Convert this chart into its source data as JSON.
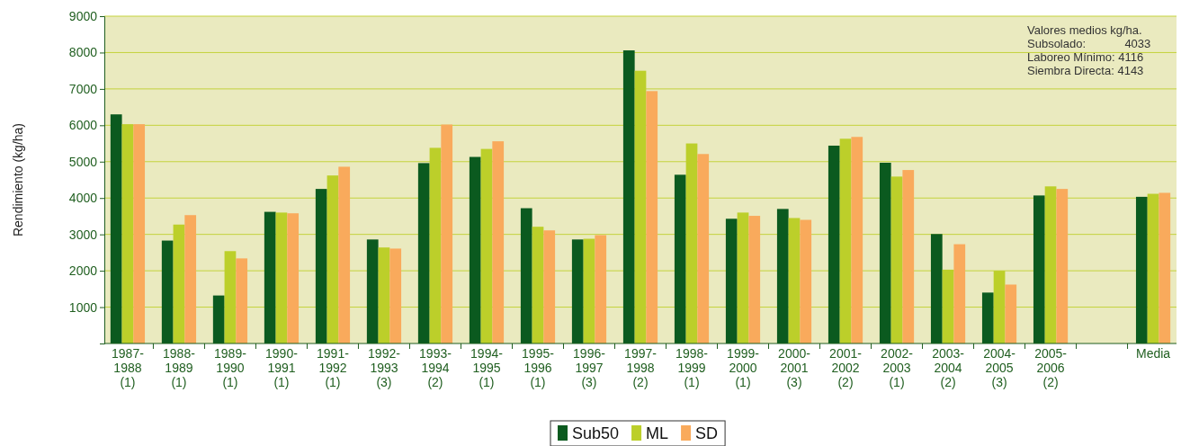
{
  "chart_data": {
    "type": "bar",
    "ylabel": "Rendimiento (kg/ha)",
    "categories": [
      "1987-1988\n(1)",
      "1988-1989\n(1)",
      "1989-1990\n(1)",
      "1990-1991\n(1)",
      "1991-1992\n(1)",
      "1992-1993\n(3)",
      "1993-1994\n(2)",
      "1994-1995\n(1)",
      "1995-1996\n(1)",
      "1996-1997\n(3)",
      "1997-1998\n(2)",
      "1998-1999\n(1)",
      "1999-2000\n(1)",
      "2000-2001\n(3)",
      "2001-2002\n(2)",
      "2002-2003\n(1)",
      "2003-2004\n(2)",
      "2004-2005\n(3)",
      "2005-2006\n(2)",
      null,
      "Media"
    ],
    "series": [
      {
        "name": "Sub50",
        "color": "#0b5a1f",
        "values": [
          6300,
          2830,
          1320,
          3620,
          4250,
          2860,
          4960,
          5130,
          3720,
          2860,
          8060,
          4640,
          3430,
          3700,
          5440,
          4970,
          3010,
          1400,
          4070,
          null,
          4033
        ]
      },
      {
        "name": "ML",
        "color": "#bccf2a",
        "values": [
          6030,
          3270,
          2540,
          3600,
          4620,
          2640,
          5380,
          5350,
          3210,
          2880,
          7500,
          5500,
          3600,
          3450,
          5630,
          4590,
          2030,
          2000,
          4320,
          null,
          4116
        ]
      },
      {
        "name": "SD",
        "color": "#f9aa5c",
        "values": [
          6030,
          3530,
          2340,
          3580,
          4860,
          2610,
          6020,
          5560,
          3110,
          2980,
          6940,
          5210,
          3510,
          3400,
          5680,
          4770,
          2730,
          1620,
          4250,
          null,
          4143
        ]
      }
    ],
    "ylim": [
      0,
      9000
    ],
    "yticks": [
      1000,
      2000,
      3000,
      4000,
      5000,
      6000,
      7000,
      8000,
      9000
    ],
    "grid": "y",
    "legend": "bottom",
    "annotations": [
      "Valores medios kg/ha.\nSubsolado:            4033\nLaboreo Mínimo: 4116\nSiembra Directa: 4143"
    ]
  }
}
